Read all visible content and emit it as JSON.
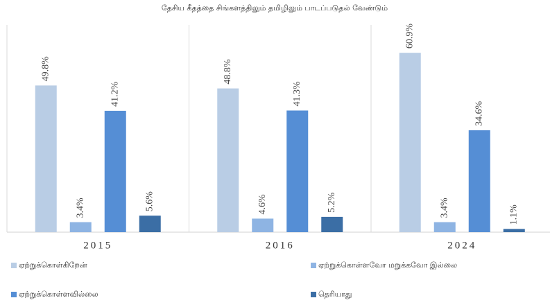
{
  "chart_data": {
    "type": "bar",
    "title": "தேசிய கீதத்தை சிங்களத்திலும் தமிழிலும் பாடப்படுதல் வேண்டும்",
    "categories": [
      "2015",
      "2016",
      "2024"
    ],
    "series": [
      {
        "name": "ஏற்றுக்கொள்கிறேன்",
        "color": "#b9cde5",
        "values": [
          49.8,
          48.8,
          60.9
        ],
        "value_labels": [
          "49.8%",
          "48.8%",
          "60.9%"
        ]
      },
      {
        "name": "ஏற்றுக்கொள்ளவோ மறுக்கவோ இல்லை",
        "color": "#8eb4e3",
        "values": [
          3.4,
          4.6,
          3.4
        ],
        "value_labels": [
          "3.4%",
          "4.6%",
          "3.4%"
        ]
      },
      {
        "name": "ஏற்றுக்கொள்ளவில்லை",
        "color": "#558ed5",
        "values": [
          41.2,
          41.3,
          34.6
        ],
        "value_labels": [
          "41.2%",
          "41.3%",
          "34.6%"
        ]
      },
      {
        "name": "தெரியாது",
        "color": "#3b6ea5",
        "values": [
          5.6,
          5.2,
          1.1
        ],
        "value_labels": [
          "5.6%",
          "5.2%",
          "1.1%"
        ]
      }
    ]
  }
}
